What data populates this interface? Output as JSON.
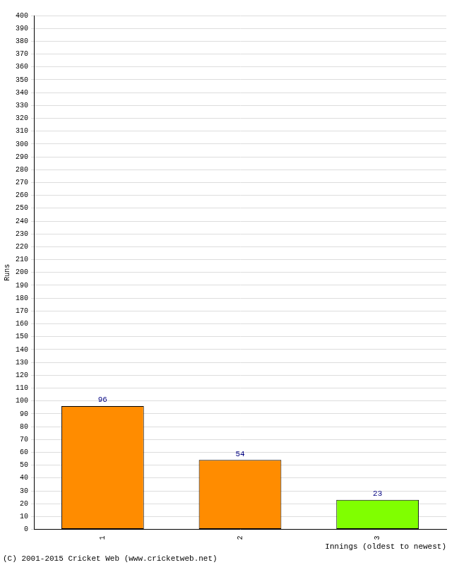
{
  "chart_data": {
    "type": "bar",
    "categories": [
      "1",
      "2",
      "3"
    ],
    "values": [
      96,
      54,
      23
    ],
    "colors": [
      "#ff8c00",
      "#ff8c00",
      "#80ff00"
    ],
    "y_label": "Runs",
    "x_label": "Innings (oldest to newest)",
    "footer": "(C) 2001-2015 Cricket Web (www.cricketweb.net)",
    "ylim": [
      0,
      400
    ],
    "yticks": [
      0,
      10,
      20,
      30,
      40,
      50,
      60,
      70,
      80,
      90,
      100,
      110,
      120,
      130,
      140,
      150,
      160,
      170,
      180,
      190,
      200,
      210,
      220,
      230,
      240,
      250,
      260,
      270,
      280,
      290,
      300,
      310,
      320,
      330,
      340,
      350,
      360,
      370,
      380,
      390,
      400
    ],
    "grid": true,
    "data_labels": true
  }
}
